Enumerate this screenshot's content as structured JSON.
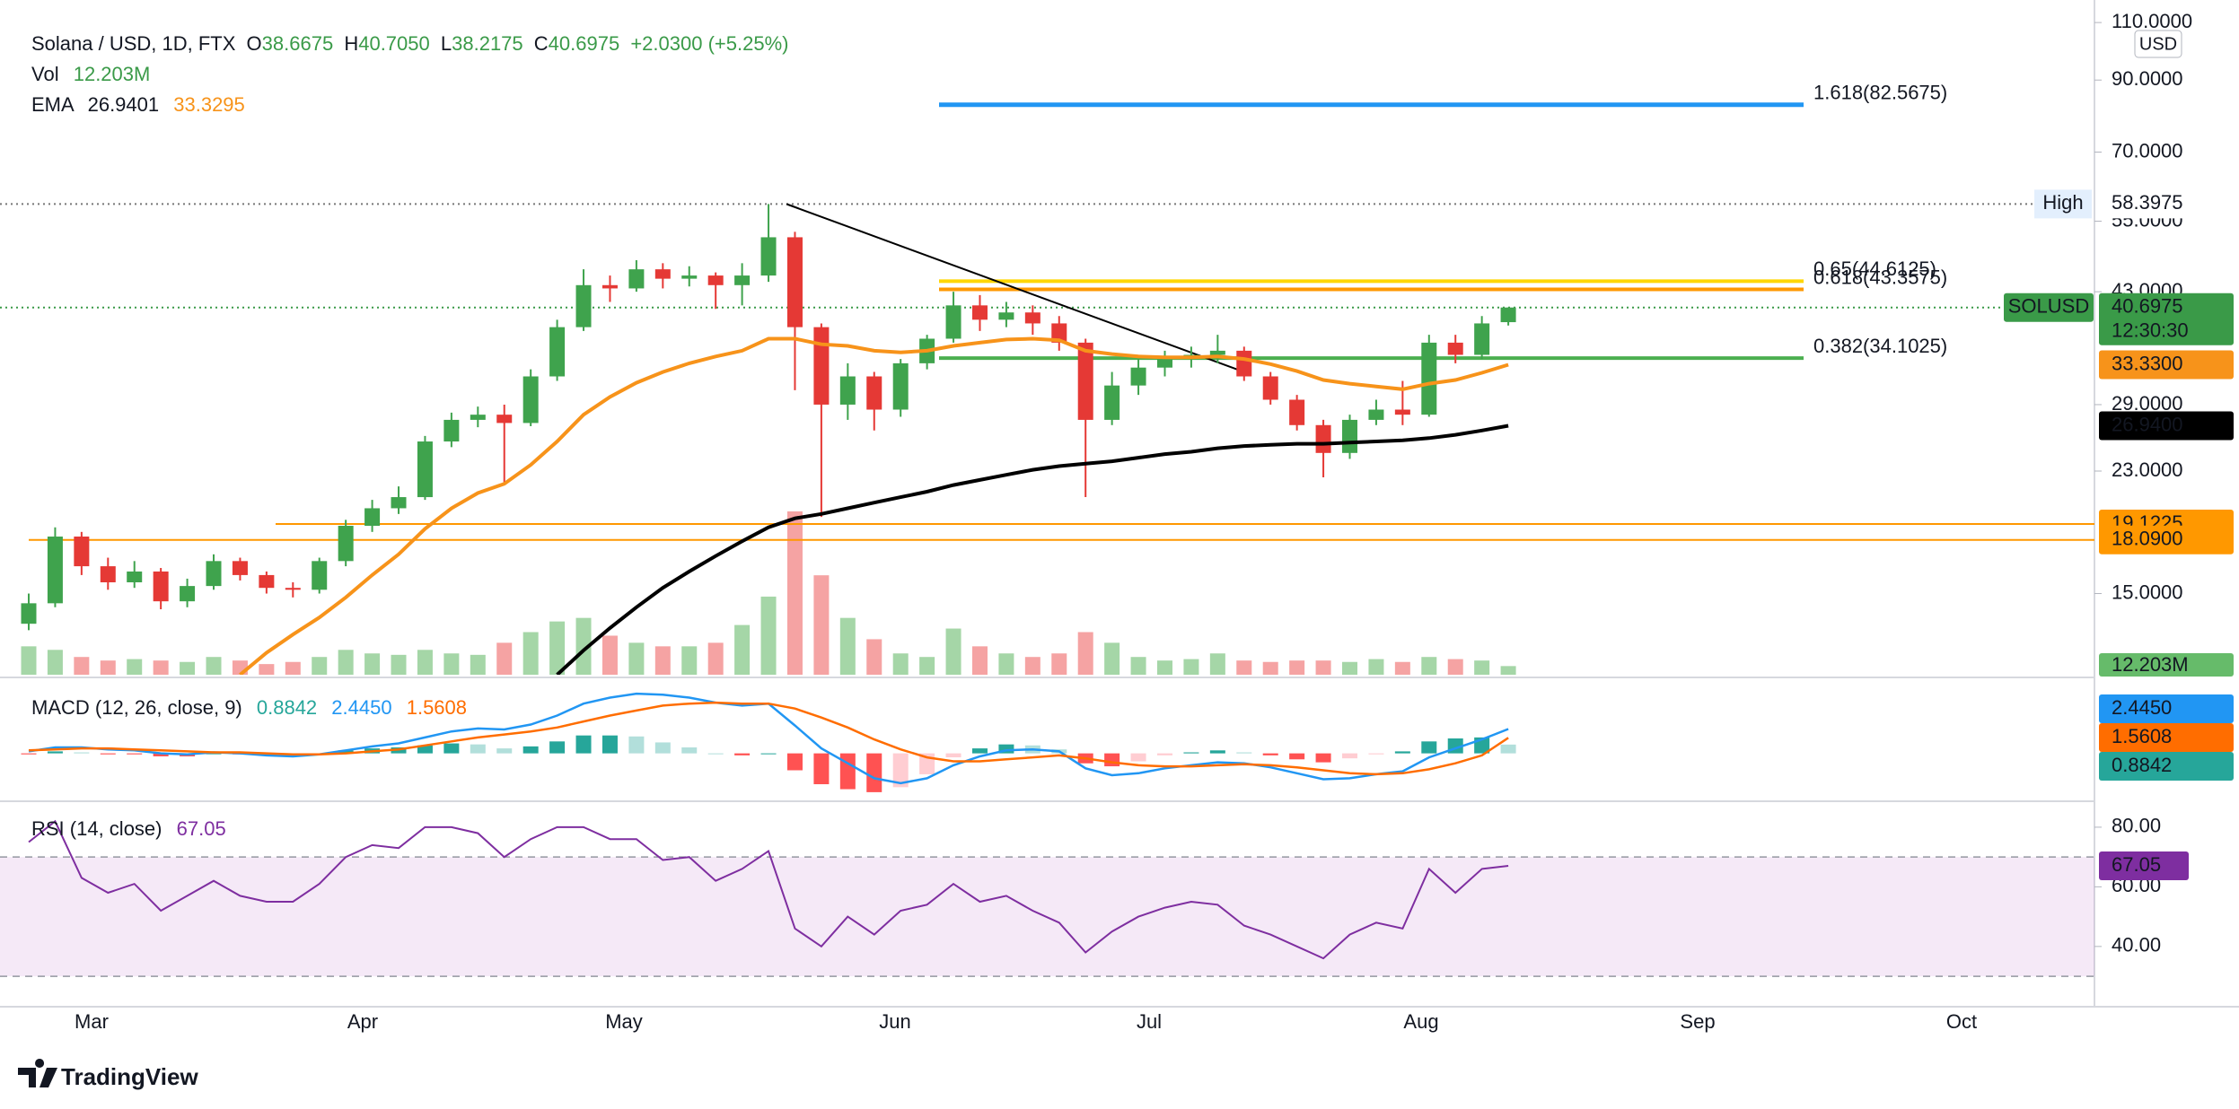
{
  "header": {
    "symbol": "Solana / USD, 1D, FTX",
    "o_label": "O",
    "o": "38.6675",
    "h_label": "H",
    "h": "40.7050",
    "l_label": "L",
    "l": "38.2175",
    "c_label": "C",
    "c": "40.6975",
    "change": "+2.0300 (+5.25%)",
    "vol_label": "Vol",
    "vol": "12.203M",
    "ema_label": "EMA",
    "ema1": "26.9401",
    "ema2": "33.3295"
  },
  "chart_data": {
    "type": "candlestick",
    "log_scale": true,
    "ylim": [
      11.3,
      119
    ],
    "currency": "USD",
    "yticks": [
      {
        "value": 110,
        "label": "110.0000"
      },
      {
        "value": 90,
        "label": "90.0000"
      },
      {
        "value": 70,
        "label": "70.0000"
      },
      {
        "value": 55,
        "label": "55.0000"
      },
      {
        "value": 43,
        "label": "43.0000"
      },
      {
        "value": 29,
        "label": "29.0000"
      },
      {
        "value": 23,
        "label": "23.0000"
      },
      {
        "value": 15,
        "label": "15.0000"
      }
    ],
    "up_color": "#3fa34d",
    "down_color": "#e53935",
    "candles": [
      [
        13.5,
        15.0,
        13.2,
        14.5
      ],
      [
        14.5,
        18.9,
        14.3,
        18.3
      ],
      [
        18.3,
        18.6,
        16.0,
        16.5
      ],
      [
        16.5,
        17.0,
        15.2,
        15.6
      ],
      [
        15.6,
        16.8,
        15.3,
        16.2
      ],
      [
        16.2,
        16.4,
        14.2,
        14.6
      ],
      [
        14.6,
        15.8,
        14.3,
        15.4
      ],
      [
        15.4,
        17.2,
        15.2,
        16.8
      ],
      [
        16.8,
        17.0,
        15.7,
        16.0
      ],
      [
        16.0,
        16.2,
        15.0,
        15.3
      ],
      [
        15.3,
        15.6,
        14.8,
        15.2
      ],
      [
        15.2,
        17.0,
        15.0,
        16.8
      ],
      [
        16.8,
        19.4,
        16.5,
        19.0
      ],
      [
        19.0,
        20.8,
        18.6,
        20.2
      ],
      [
        20.2,
        21.8,
        19.8,
        21.0
      ],
      [
        21.0,
        26.0,
        20.8,
        25.5
      ],
      [
        25.5,
        28.2,
        25.0,
        27.5
      ],
      [
        27.5,
        28.8,
        26.8,
        28.0
      ],
      [
        28.0,
        29.0,
        22.0,
        27.2
      ],
      [
        27.2,
        32.8,
        26.9,
        32.0
      ],
      [
        32.0,
        39.0,
        31.5,
        38.0
      ],
      [
        38.0,
        46.5,
        37.5,
        44.0
      ],
      [
        44.0,
        45.5,
        41.5,
        43.5
      ],
      [
        43.5,
        48.0,
        43.0,
        46.5
      ],
      [
        46.5,
        47.5,
        43.5,
        45.0
      ],
      [
        45.0,
        47.0,
        43.8,
        45.5
      ],
      [
        45.5,
        46.0,
        40.5,
        44.0
      ],
      [
        44.0,
        47.5,
        41.0,
        45.5
      ],
      [
        45.5,
        58.3975,
        44.5,
        52.0
      ],
      [
        52.0,
        53.0,
        30.5,
        38.0
      ],
      [
        38.0,
        38.5,
        19.6,
        29.0
      ],
      [
        29.0,
        33.5,
        27.5,
        32.0
      ],
      [
        32.0,
        32.5,
        26.5,
        28.5
      ],
      [
        28.5,
        34.0,
        27.8,
        33.5
      ],
      [
        33.5,
        37.0,
        32.8,
        36.5
      ],
      [
        36.5,
        43.0,
        36.0,
        41.0
      ],
      [
        41.0,
        42.5,
        37.5,
        39.0
      ],
      [
        39.0,
        41.5,
        38.0,
        40.0
      ],
      [
        40.0,
        41.0,
        37.0,
        38.5
      ],
      [
        38.5,
        39.5,
        35.0,
        36.0
      ],
      [
        36.0,
        36.5,
        21.0,
        27.5
      ],
      [
        27.5,
        32.5,
        27.0,
        31.0
      ],
      [
        31.0,
        34.0,
        30.0,
        33.0
      ],
      [
        33.0,
        35.0,
        32.0,
        34.0
      ],
      [
        34.0,
        35.5,
        33.0,
        34.5
      ],
      [
        34.5,
        37.0,
        33.5,
        35.0
      ],
      [
        35.0,
        35.5,
        31.5,
        32.0
      ],
      [
        32.0,
        32.5,
        29.0,
        29.5
      ],
      [
        29.5,
        30.0,
        26.5,
        27.0
      ],
      [
        27.0,
        27.5,
        22.5,
        24.5
      ],
      [
        24.5,
        28.0,
        24.0,
        27.5
      ],
      [
        27.5,
        29.5,
        27.0,
        28.5
      ],
      [
        28.5,
        31.5,
        27.0,
        28.0
      ],
      [
        28.0,
        37.0,
        27.8,
        36.0
      ],
      [
        36.0,
        37.0,
        33.5,
        34.5
      ],
      [
        34.5,
        39.5,
        34.0,
        38.5
      ],
      [
        38.6675,
        40.705,
        38.2175,
        40.6975
      ]
    ],
    "volume": {
      "ylim": [
        0,
        240
      ],
      "up_color": "#a5d6a7",
      "down_color": "#f5a3a3",
      "badge_color": "#66bb6a",
      "values": [
        40,
        35,
        25,
        20,
        22,
        20,
        18,
        25,
        20,
        15,
        18,
        25,
        35,
        30,
        28,
        35,
        30,
        28,
        45,
        60,
        75,
        80,
        55,
        45,
        40,
        40,
        45,
        70,
        110,
        230,
        140,
        80,
        50,
        30,
        25,
        65,
        40,
        30,
        25,
        30,
        60,
        45,
        25,
        20,
        22,
        30,
        20,
        18,
        20,
        20,
        18,
        22,
        18,
        25,
        22,
        20,
        12.203
      ],
      "value_labels": {
        "56": "12.203M"
      }
    },
    "ema": [
      {
        "color": "#000000",
        "badge": {
          "value": 26.94,
          "label": "26.9400"
        },
        "values": [
          null,
          null,
          null,
          null,
          null,
          null,
          null,
          null,
          null,
          null,
          null,
          null,
          null,
          null,
          null,
          null,
          null,
          null,
          null,
          null,
          11.3,
          12.3,
          13.3,
          14.3,
          15.3,
          16.2,
          17.1,
          18.0,
          18.9,
          19.5,
          19.8,
          20.2,
          20.6,
          21.0,
          21.4,
          21.9,
          22.3,
          22.7,
          23.1,
          23.4,
          23.6,
          23.8,
          24.1,
          24.4,
          24.6,
          24.9,
          25.1,
          25.2,
          25.3,
          25.3,
          25.4,
          25.5,
          25.6,
          25.8,
          26.1,
          26.5,
          26.9401
        ]
      },
      {
        "color": "#f7931a",
        "badge": {
          "value": 33.33,
          "label": "33.3300"
        },
        "values": [
          null,
          null,
          null,
          null,
          null,
          null,
          null,
          null,
          11.3,
          12.2,
          13.0,
          13.8,
          14.8,
          16.0,
          17.2,
          18.8,
          20.2,
          21.3,
          22.0,
          23.5,
          25.5,
          28.0,
          29.8,
          31.3,
          32.5,
          33.5,
          34.3,
          35.0,
          36.5,
          36.5,
          35.8,
          35.6,
          35.0,
          34.8,
          35.0,
          35.6,
          36.0,
          36.4,
          36.5,
          36.3,
          35.0,
          34.6,
          34.3,
          34.2,
          34.2,
          34.3,
          34.0,
          33.4,
          32.6,
          31.6,
          31.2,
          30.9,
          30.6,
          31.2,
          31.6,
          32.4,
          33.3295
        ]
      }
    ],
    "levels": [
      {
        "value": 19.1225,
        "color": "#ff9800"
      },
      {
        "value": 18.09,
        "label": "18.0900",
        "color": "#ff9800"
      }
    ],
    "fib": [
      {
        "label": "1.618(82.5675)",
        "value": 82.5675,
        "color": "#2196f3"
      },
      {
        "label": "0.65(44.6125)",
        "value": 44.6125,
        "color": "#ffd600"
      },
      {
        "label": "0.618(43.3575)",
        "value": 43.3575,
        "color": "#ff9800"
      },
      {
        "label": "0.382(34.1025)",
        "value": 34.1025,
        "color": "#4caf50"
      }
    ],
    "trendline": {
      "start": 58.3975,
      "end": 32.5,
      "color": "#000000"
    },
    "high": {
      "label": "High",
      "value": 58.3975
    },
    "last": {
      "label": "SOLUSD",
      "value": 40.6975,
      "countdown": "12:30:30",
      "color": "#3a9a48"
    },
    "x_labels": [
      "Mar",
      "Apr",
      "May",
      "Jun",
      "Jul",
      "Aug",
      "Sep",
      "Oct"
    ]
  },
  "macd": {
    "title": "MACD (12, 26, close, 9)",
    "ylim": [
      -4,
      7
    ],
    "histogram": {
      "color": "#26a69a",
      "label": "0.8842",
      "values": [
        -0.1,
        0.2,
        0.1,
        -0.1,
        -0.1,
        -0.3,
        -0.3,
        0.0,
        -0.1,
        -0.2,
        -0.2,
        0.0,
        0.3,
        0.5,
        0.6,
        0.8,
        1.0,
        0.9,
        0.5,
        0.7,
        1.2,
        1.8,
        1.8,
        1.7,
        1.1,
        0.6,
        0.0,
        -0.2,
        0.0,
        -1.7,
        -3.1,
        -3.6,
        -3.9,
        -3.4,
        -2.1,
        -0.4,
        0.5,
        0.9,
        0.8,
        0.4,
        -1.0,
        -1.3,
        -0.8,
        -0.2,
        0.1,
        0.3,
        0.1,
        -0.2,
        -0.6,
        -0.9,
        -0.5,
        -0.1,
        0.2,
        1.2,
        1.5,
        1.6,
        0.8842
      ]
    },
    "macd": {
      "color": "#2196f3",
      "label": "2.4450",
      "values": [
        0.2,
        0.6,
        0.6,
        0.4,
        0.3,
        0.0,
        -0.1,
        0.1,
        0.0,
        -0.2,
        -0.3,
        -0.1,
        0.3,
        0.7,
        1.0,
        1.6,
        2.2,
        2.5,
        2.4,
        2.9,
        3.8,
        5.0,
        5.6,
        6.0,
        5.9,
        5.6,
        5.1,
        4.8,
        5.0,
        2.8,
        0.5,
        -1.0,
        -2.5,
        -3.0,
        -2.5,
        -1.2,
        -0.3,
        0.3,
        0.4,
        0.2,
        -1.5,
        -2.2,
        -2.0,
        -1.5,
        -1.2,
        -0.9,
        -1.0,
        -1.4,
        -2.0,
        -2.6,
        -2.5,
        -2.1,
        -1.8,
        -0.4,
        0.5,
        1.4,
        2.445
      ]
    },
    "signal": {
      "color": "#ff6d00",
      "label": "1.5608",
      "values": [
        0.3,
        0.4,
        0.5,
        0.5,
        0.4,
        0.3,
        0.2,
        0.1,
        0.1,
        0.0,
        -0.1,
        -0.1,
        0.0,
        0.2,
        0.4,
        0.8,
        1.2,
        1.6,
        1.9,
        2.2,
        2.6,
        3.2,
        3.8,
        4.3,
        4.8,
        5.0,
        5.1,
        5.0,
        5.0,
        4.5,
        3.6,
        2.6,
        1.4,
        0.4,
        -0.4,
        -0.8,
        -0.8,
        -0.6,
        -0.4,
        -0.2,
        -0.5,
        -0.9,
        -1.2,
        -1.3,
        -1.3,
        -1.2,
        -1.1,
        -1.2,
        -1.4,
        -1.7,
        -2.0,
        -2.1,
        -2.0,
        -1.6,
        -1.0,
        -0.2,
        1.5608
      ]
    }
  },
  "rsi": {
    "title": "RSI (14, close)",
    "color": "#7e2ea0",
    "ylim": [
      22.5,
      87.5
    ],
    "bands": [
      70,
      30
    ],
    "yticks": [
      {
        "value": 80,
        "label": "80.00"
      },
      {
        "value": 60,
        "label": "60.00"
      },
      {
        "value": 40,
        "label": "40.00"
      }
    ],
    "values": [
      75,
      82,
      63,
      58,
      61,
      52,
      57,
      62,
      57,
      55,
      55,
      61,
      70,
      74,
      73,
      80,
      80,
      78,
      70,
      76,
      80,
      80,
      76,
      76,
      69,
      70,
      62,
      66,
      72,
      46,
      40,
      50,
      44,
      52,
      54,
      61,
      55,
      57,
      52,
      48,
      38,
      45,
      50,
      53,
      55,
      54,
      47,
      44,
      40,
      36,
      44,
      48,
      46,
      66,
      58,
      66,
      67.05
    ]
  },
  "logo": "TradingView"
}
